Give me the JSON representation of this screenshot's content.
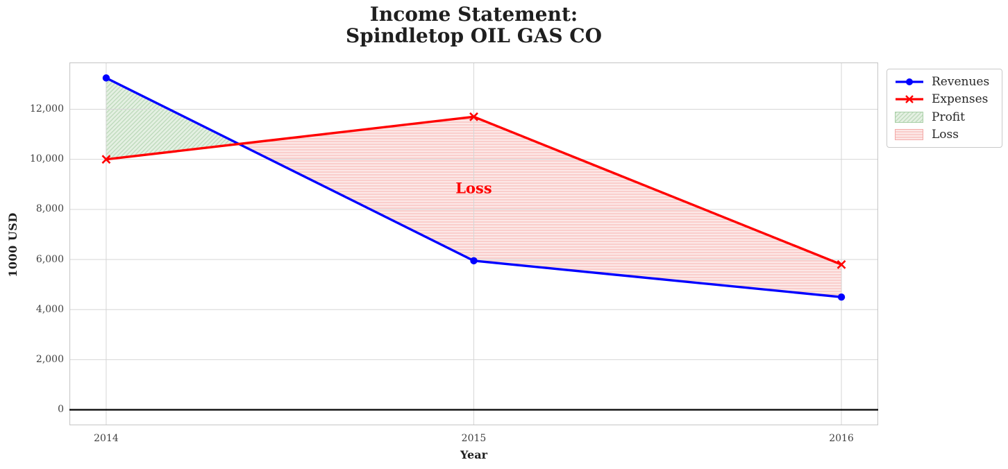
{
  "title": "Income Statement:\nSpindletop OIL GAS CO",
  "chart_data": {
    "type": "line",
    "title": "Income Statement: Spindletop OIL GAS CO",
    "xlabel": "Year",
    "ylabel": "1000 USD",
    "x": [
      2014,
      2015,
      2016
    ],
    "series": [
      {
        "name": "Revenues",
        "values": [
          13250,
          5950,
          4500
        ],
        "color": "#0000ff",
        "marker": "circle",
        "line_width": 3.4
      },
      {
        "name": "Expenses",
        "values": [
          10000,
          11700,
          5800
        ],
        "color": "#ff0000",
        "marker": "x",
        "line_width": 3.4
      }
    ],
    "fills": [
      {
        "name": "Profit",
        "condition": "revenues_above_expenses",
        "fill": "#e4f0e2",
        "hatch": "diagonal",
        "hatch_color": "#bcd9ba",
        "edge": "#a8cfa6"
      },
      {
        "name": "Loss",
        "condition": "expenses_above_revenues",
        "fill": "#fce8e7",
        "hatch": "horizontal",
        "hatch_color": "#f9bdbb",
        "edge": "#f3a8a6"
      }
    ],
    "annotations": [
      {
        "text": "Loss",
        "x": 2015,
        "y": 8850,
        "color": "#ff0000",
        "font_size": 21,
        "bold": true
      }
    ],
    "xlim": [
      2013.9,
      2016.1
    ],
    "ylim": [
      -620,
      13870
    ],
    "xticks": [
      {
        "value": 2014,
        "label": "2014"
      },
      {
        "value": 2015,
        "label": "2015"
      },
      {
        "value": 2016,
        "label": "2016"
      }
    ],
    "yticks": [
      {
        "value": 0,
        "label": "0"
      },
      {
        "value": 2000,
        "label": "2,000"
      },
      {
        "value": 4000,
        "label": "4,000"
      },
      {
        "value": 6000,
        "label": "6,000"
      },
      {
        "value": 8000,
        "label": "8,000"
      },
      {
        "value": 10000,
        "label": "10,000"
      },
      {
        "value": 12000,
        "label": "12,000"
      }
    ],
    "grid": true,
    "grid_color": "#d6d6d6",
    "border_color": "#c8c8c8",
    "zero_line": true,
    "zero_line_color": "#000000",
    "legend_position": "outside-top-right"
  },
  "legend": {
    "items": [
      {
        "label": "Revenues"
      },
      {
        "label": "Expenses"
      },
      {
        "label": "Profit"
      },
      {
        "label": "Loss"
      }
    ]
  }
}
